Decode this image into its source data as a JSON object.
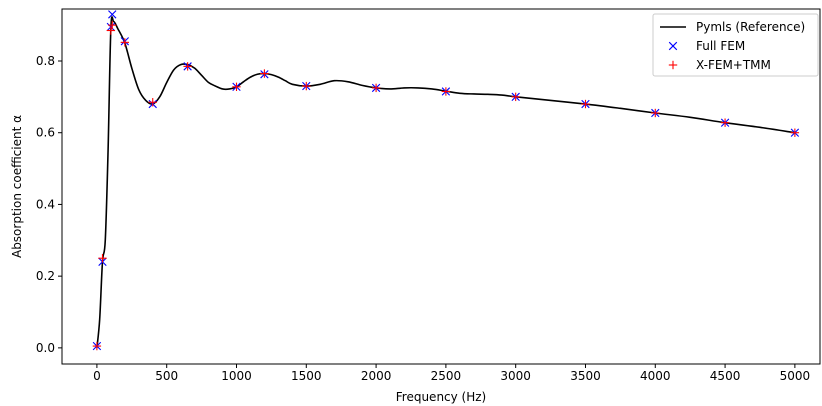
{
  "chart_data": {
    "type": "line",
    "xlabel": "Frequency (Hz)",
    "ylabel": "Absorption coefficient α",
    "xlim": [
      -250,
      5180
    ],
    "ylim": [
      -0.045,
      0.945
    ],
    "x_ticks": [
      0,
      500,
      1000,
      1500,
      2000,
      2500,
      3000,
      3500,
      4000,
      4500,
      5000
    ],
    "y_ticks": [
      0.0,
      0.2,
      0.4,
      0.6,
      0.8
    ],
    "x_tick_labels": [
      "0",
      "500",
      "1000",
      "1500",
      "2000",
      "2500",
      "3000",
      "3500",
      "4000",
      "4500",
      "5000"
    ],
    "y_tick_labels": [
      "0.0",
      "0.2",
      "0.4",
      "0.6",
      "0.8"
    ],
    "grid": false,
    "legend_position": "top-right",
    "series": [
      {
        "name": "Pymls (Reference)",
        "style": "line",
        "color": "#000000",
        "x": [
          0,
          20,
          40,
          60,
          80,
          100,
          120,
          150,
          200,
          250,
          300,
          350,
          400,
          450,
          500,
          550,
          600,
          650,
          700,
          750,
          800,
          850,
          900,
          950,
          1000,
          1050,
          1100,
          1150,
          1200,
          1250,
          1300,
          1350,
          1400,
          1500,
          1600,
          1700,
          1800,
          1900,
          2000,
          2100,
          2200,
          2300,
          2400,
          2500,
          2600,
          2700,
          2800,
          2900,
          3000,
          3200,
          3500,
          3750,
          4000,
          4250,
          4500,
          4750,
          5000
        ],
        "y": [
          0.0,
          0.08,
          0.24,
          0.3,
          0.55,
          0.89,
          0.91,
          0.89,
          0.85,
          0.78,
          0.72,
          0.69,
          0.68,
          0.7,
          0.74,
          0.775,
          0.79,
          0.79,
          0.78,
          0.76,
          0.74,
          0.73,
          0.722,
          0.722,
          0.728,
          0.742,
          0.755,
          0.763,
          0.765,
          0.762,
          0.755,
          0.745,
          0.735,
          0.73,
          0.735,
          0.745,
          0.742,
          0.732,
          0.725,
          0.722,
          0.725,
          0.725,
          0.722,
          0.716,
          0.71,
          0.708,
          0.707,
          0.705,
          0.7,
          0.692,
          0.68,
          0.668,
          0.655,
          0.643,
          0.628,
          0.615,
          0.6
        ]
      },
      {
        "name": "Full FEM",
        "style": "x-marker",
        "color": "#0000ff",
        "x": [
          0,
          40,
          100,
          110,
          200,
          400,
          650,
          1000,
          1200,
          1500,
          2000,
          2500,
          3000,
          3500,
          4000,
          4500,
          5000
        ],
        "y": [
          0.005,
          0.24,
          0.895,
          0.93,
          0.855,
          0.68,
          0.785,
          0.728,
          0.763,
          0.73,
          0.725,
          0.715,
          0.7,
          0.68,
          0.655,
          0.628,
          0.6
        ]
      },
      {
        "name": "X-FEM+TMM",
        "style": "plus-marker",
        "color": "#ff0000",
        "x": [
          0,
          40,
          100,
          110,
          200,
          400,
          650,
          1000,
          1200,
          1500,
          2000,
          2500,
          3000,
          3500,
          4000,
          4500,
          5000
        ],
        "y": [
          0.005,
          0.25,
          0.885,
          0.9,
          0.852,
          0.685,
          0.785,
          0.728,
          0.765,
          0.73,
          0.725,
          0.715,
          0.7,
          0.68,
          0.655,
          0.628,
          0.6
        ]
      }
    ]
  }
}
